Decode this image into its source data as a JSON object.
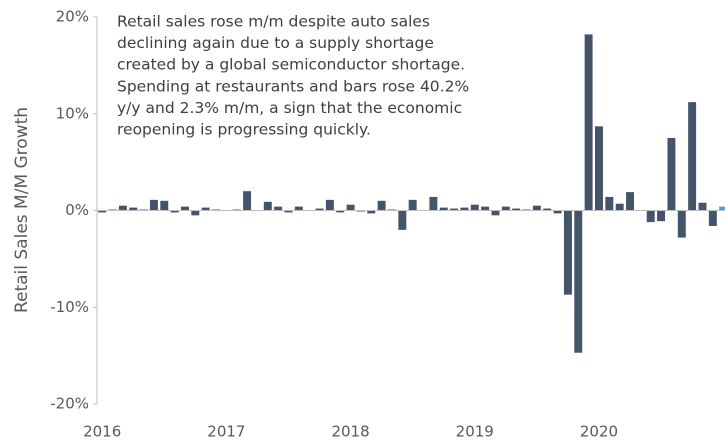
{
  "chart_data": {
    "type": "bar",
    "y_label": "Retail Sales M/M Growth",
    "annotation": [
      "Retail sales rose m/m despite auto sales",
      "declining again due to a supply shortage",
      "created by a global semiconductor shortage.",
      "Spending at restaurants and bars rose 40.2%",
      "y/y and 2.3% m/m, a sign that the economic",
      "reopening is progressing quickly."
    ],
    "categories": [
      "2016",
      null,
      null,
      null,
      null,
      null,
      null,
      null,
      null,
      null,
      null,
      null,
      "2017",
      null,
      null,
      null,
      null,
      null,
      null,
      null,
      null,
      null,
      null,
      null,
      "2018",
      null,
      null,
      null,
      null,
      null,
      null,
      null,
      null,
      null,
      null,
      null,
      "2019",
      null,
      null,
      null,
      null,
      null,
      null,
      null,
      null,
      null,
      null,
      null,
      "2020",
      null,
      null,
      null,
      null,
      null,
      null,
      null,
      null,
      null,
      null,
      null,
      null
    ],
    "values": [
      -0.2,
      0.1,
      0.5,
      0.3,
      0.1,
      1.1,
      1.0,
      -0.2,
      0.4,
      -0.5,
      0.3,
      0.1,
      0.0,
      0.1,
      2.0,
      0.0,
      0.9,
      0.4,
      -0.2,
      0.4,
      0.0,
      0.2,
      1.1,
      -0.2,
      0.6,
      -0.1,
      -0.3,
      1.0,
      0.1,
      -2.0,
      1.1,
      0.0,
      1.4,
      0.3,
      0.2,
      0.3,
      0.6,
      0.4,
      -0.5,
      0.4,
      0.2,
      0.1,
      0.5,
      0.2,
      -0.3,
      -8.7,
      -14.7,
      18.2,
      8.7,
      1.4,
      0.7,
      1.9,
      0.0,
      -1.2,
      -1.1,
      7.5,
      -2.8,
      11.2,
      0.8,
      -1.6,
      0.4
    ],
    "color": "#44546a",
    "last_color": "#5b9bd5",
    "ylim": [
      -20,
      20
    ],
    "yticks": [
      {
        "value": -20,
        "label": "-20%"
      },
      {
        "value": -10,
        "label": "-10%"
      },
      {
        "value": 0,
        "label": "0%"
      },
      {
        "value": 10,
        "label": "10%"
      },
      {
        "value": 20,
        "label": "20%"
      }
    ]
  }
}
